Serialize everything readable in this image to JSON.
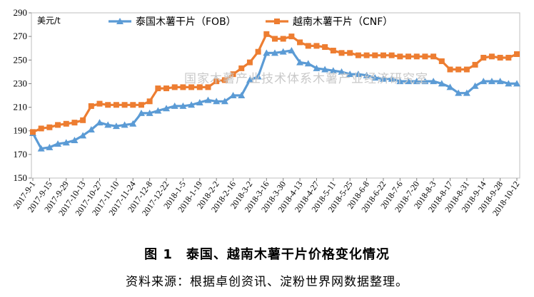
{
  "chart_data": {
    "type": "line",
    "ylabel": "美元/t",
    "ylim": [
      150,
      290
    ],
    "yticks": [
      150,
      170,
      190,
      210,
      230,
      250,
      270,
      290
    ],
    "x_tick_labels": [
      "2017-9-1",
      "2017-9-15",
      "2017-9-29",
      "2017-10-13",
      "2017-10-27",
      "2017-11-10",
      "2017-11-24",
      "2017-12-8",
      "2017-12-22",
      "2018-1-5",
      "2018-1-19",
      "2018-2-2",
      "2018-2-16",
      "2018-3-2",
      "2018-3-16",
      "2018-3-30",
      "2018-4-13",
      "2018-4-27",
      "2018-5-11",
      "2018-5-25",
      "2018-6-8",
      "2018-6-22",
      "2018-7-6",
      "2018-7-20",
      "2018-8-3",
      "2018-8-17",
      "2018-8-31",
      "2018-9-14",
      "2018-9-28",
      "2018-10-12"
    ],
    "x": [
      "2017-9-1",
      "2017-9-8",
      "2017-9-15",
      "2017-9-22",
      "2017-9-29",
      "2017-10-6",
      "2017-10-13",
      "2017-10-20",
      "2017-10-27",
      "2017-11-3",
      "2017-11-10",
      "2017-11-17",
      "2017-11-24",
      "2017-12-1",
      "2017-12-8",
      "2017-12-15",
      "2017-12-22",
      "2017-12-29",
      "2018-1-5",
      "2018-1-12",
      "2018-1-19",
      "2018-1-26",
      "2018-2-2",
      "2018-2-9",
      "2018-2-16",
      "2018-2-23",
      "2018-3-2",
      "2018-3-9",
      "2018-3-16",
      "2018-3-23",
      "2018-3-30",
      "2018-4-6",
      "2018-4-13",
      "2018-4-20",
      "2018-4-27",
      "2018-5-4",
      "2018-5-11",
      "2018-5-18",
      "2018-5-25",
      "2018-6-1",
      "2018-6-8",
      "2018-6-15",
      "2018-6-22",
      "2018-6-29",
      "2018-7-6",
      "2018-7-13",
      "2018-7-20",
      "2018-7-27",
      "2018-8-3",
      "2018-8-10",
      "2018-8-17",
      "2018-8-24",
      "2018-8-31",
      "2018-9-7",
      "2018-9-14",
      "2018-9-21",
      "2018-9-28",
      "2018-10-5",
      "2018-10-12"
    ],
    "series": [
      {
        "name": "泰国木薯干片（FOB）",
        "color": "#5b9bd5",
        "marker": "triangle",
        "values": [
          188,
          175,
          176,
          179,
          180,
          182,
          186,
          191,
          197,
          195,
          194,
          195,
          196,
          205,
          205,
          207,
          209,
          211,
          211,
          212,
          214,
          216,
          215,
          215,
          220,
          220,
          233,
          236,
          256,
          256,
          257,
          258,
          248,
          247,
          243,
          242,
          241,
          240,
          238,
          238,
          237,
          235,
          234,
          234,
          232,
          232,
          232,
          232,
          232,
          230,
          227,
          222,
          222,
          228,
          232,
          232,
          232,
          230,
          230
        ]
      },
      {
        "name": "越南木薯干片（CNF）",
        "color": "#ed7d31",
        "marker": "square",
        "values": [
          189,
          192,
          193,
          195,
          196,
          197,
          199,
          211,
          213,
          212,
          212,
          212,
          212,
          212,
          215,
          226,
          226,
          227,
          227,
          227,
          227,
          227,
          232,
          233,
          238,
          243,
          248,
          257,
          272,
          268,
          268,
          270,
          265,
          262,
          262,
          261,
          258,
          256,
          256,
          254,
          254,
          254,
          254,
          254,
          253,
          253,
          253,
          253,
          253,
          249,
          242,
          242,
          242,
          246,
          252,
          253,
          252,
          252,
          255
        ]
      }
    ]
  },
  "watermark": "国家木薯产业技术体系木薯产业经济研究室",
  "figure_title": "图 1　泰国、越南木薯干片价格变化情况",
  "figure_source": "资料来源：根据卓创资讯、淀粉世界网数据整理。"
}
